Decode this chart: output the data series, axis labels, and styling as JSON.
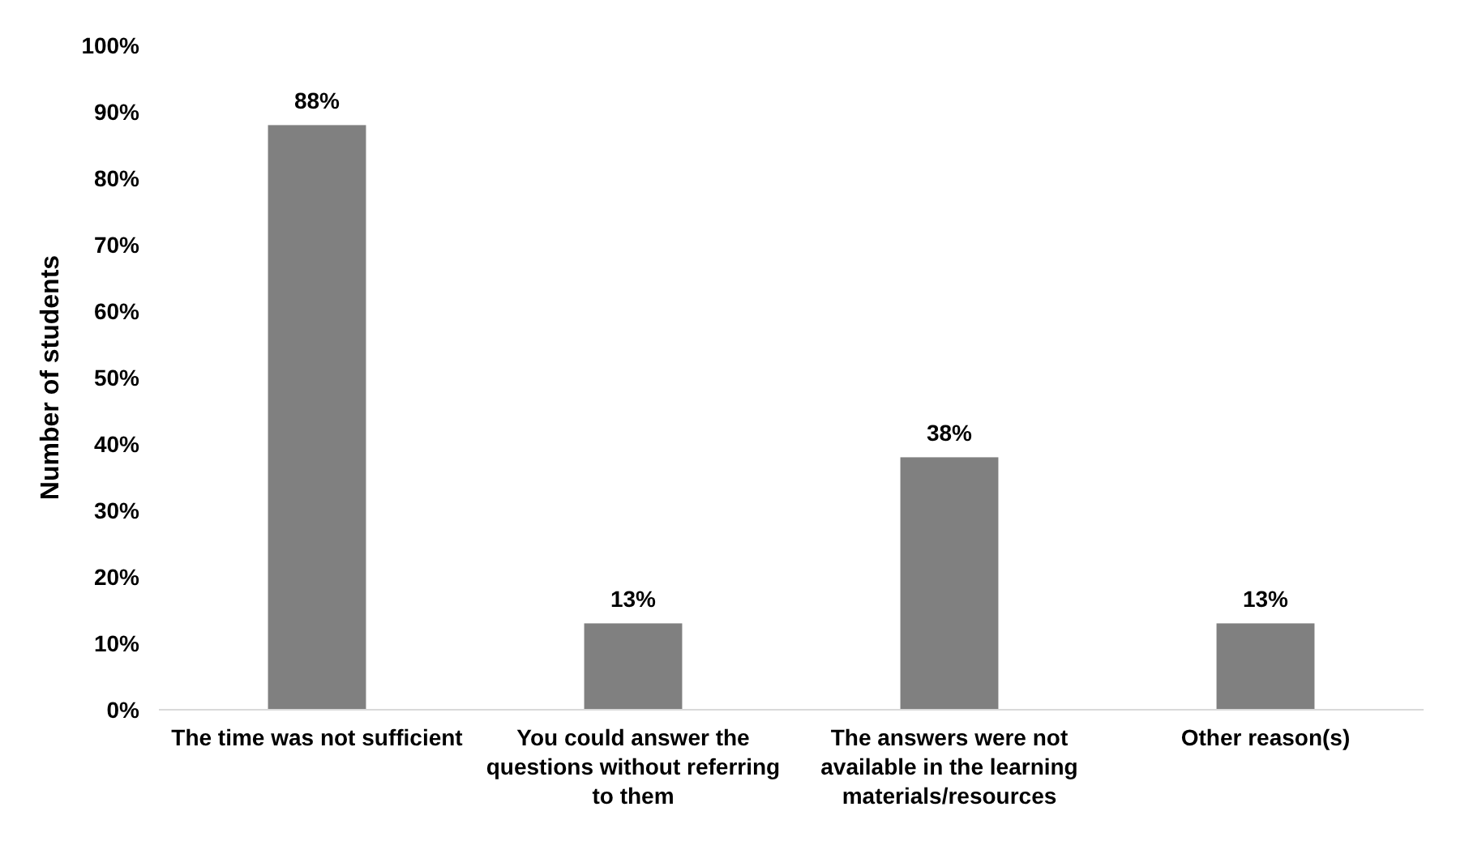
{
  "chart_data": {
    "type": "bar",
    "ylabel": "Number of students",
    "categories": [
      "The time was not sufficient",
      "You could answer the questions without referring to them",
      "The answers were not available in the learning materials/resources",
      "Other reason(s)"
    ],
    "values": [
      88,
      13,
      38,
      13
    ],
    "color": "#808080",
    "value_labels": [
      "88%",
      "13%",
      "38%",
      "13%"
    ],
    "ylim": [
      0,
      100
    ],
    "yticks": [
      {
        "value": 0,
        "label": "0%"
      },
      {
        "value": 10,
        "label": "10%"
      },
      {
        "value": 20,
        "label": "20%"
      },
      {
        "value": 30,
        "label": "30%"
      },
      {
        "value": 40,
        "label": "40%"
      },
      {
        "value": 50,
        "label": "50%"
      },
      {
        "value": 60,
        "label": "60%"
      },
      {
        "value": 70,
        "label": "70%"
      },
      {
        "value": 80,
        "label": "80%"
      },
      {
        "value": 90,
        "label": "90%"
      },
      {
        "value": 100,
        "label": "100%"
      }
    ],
    "grid": false
  }
}
